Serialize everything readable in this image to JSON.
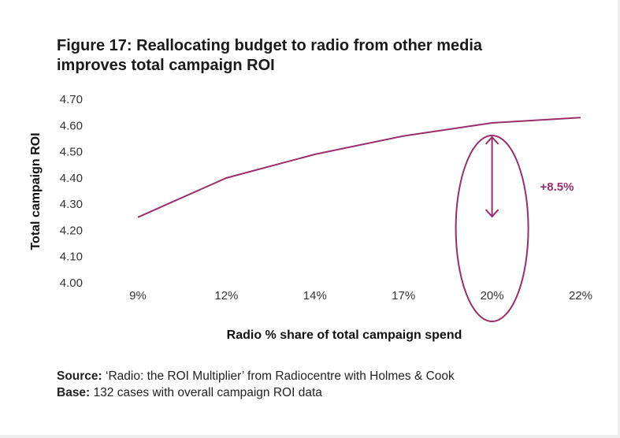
{
  "chart_data": {
    "type": "line",
    "title": "Figure 17: Reallocating budget to radio from other media improves total campaign ROI",
    "title_lines": [
      "Figure 17: Reallocating budget to radio from other media",
      "improves total campaign ROI"
    ],
    "xlabel": "Radio % share of total campaign spend",
    "ylabel": "Total campaign ROI",
    "categories": [
      "9%",
      "12%",
      "14%",
      "17%",
      "20%",
      "22%"
    ],
    "values": [
      4.25,
      4.4,
      4.49,
      4.56,
      4.61,
      4.63
    ],
    "ylim": [
      4.0,
      4.7
    ],
    "yticks": [
      "4.00",
      "4.10",
      "4.20",
      "4.30",
      "4.40",
      "4.50",
      "4.60",
      "4.70"
    ],
    "grid": false,
    "annotation": {
      "text": "+8.5%",
      "category": "20%"
    },
    "color": "#9a2e6c"
  },
  "source": {
    "label": "Source:",
    "text": " ‘Radio: the ROI Multiplier’ from Radiocentre with Holmes & Cook"
  },
  "base": {
    "label": "Base:",
    "text": " 132 cases with overall campaign ROI data"
  }
}
